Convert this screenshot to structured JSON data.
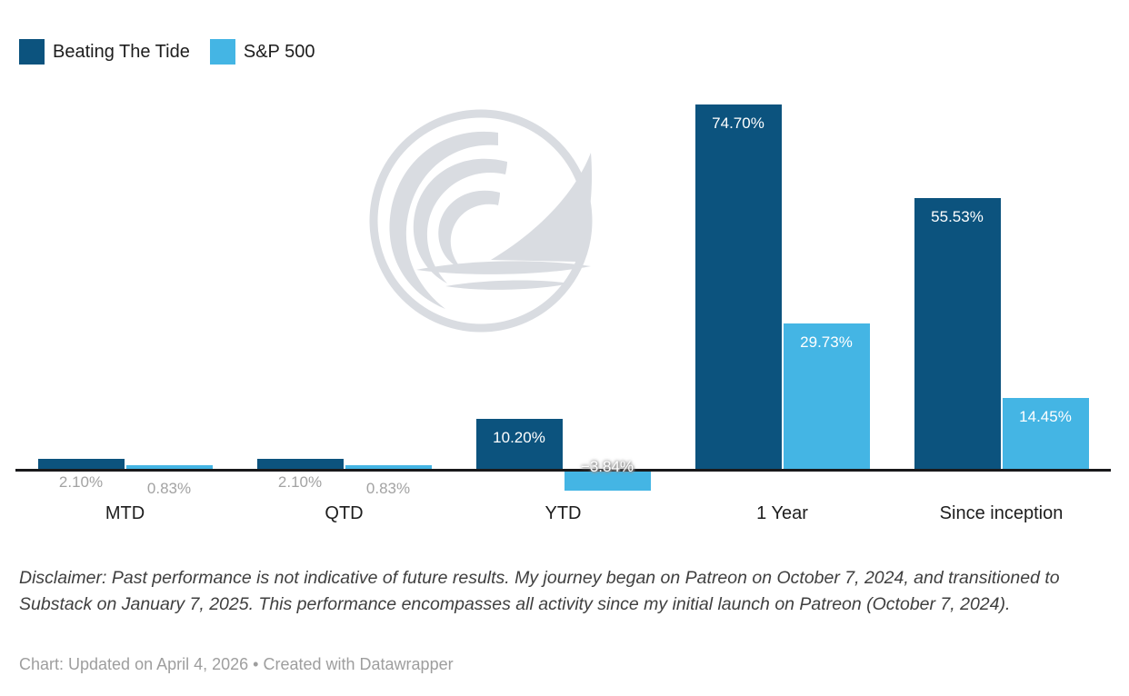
{
  "chart_data": {
    "type": "bar",
    "categories": [
      "MTD",
      "QTD",
      "YTD",
      "1 Year",
      "Since inception"
    ],
    "series": [
      {
        "name": "Beating The Tide",
        "color": "#0c537e",
        "values": [
          2.1,
          2.1,
          10.2,
          74.7,
          55.53
        ],
        "labels": [
          "2.10%",
          "2.10%",
          "10.20%",
          "74.70%",
          "55.53%"
        ]
      },
      {
        "name": "S&P 500",
        "color": "#44b5e4",
        "values": [
          0.83,
          0.83,
          -3.84,
          29.73,
          14.45
        ],
        "labels": [
          "0.83%",
          "0.83%",
          "−3.84%",
          "29.73%",
          "14.45%"
        ]
      }
    ],
    "title": "",
    "xlabel": "",
    "ylabel": "",
    "value_format": "percent",
    "ylim": [
      -3.84,
      74.7
    ],
    "baseline": 0,
    "grid": false,
    "legend_position": "top-left",
    "label_placement": "inside-top, gray outside below axis for small bars"
  },
  "watermark": {
    "name": "Beating The Tide wave-and-sail logo",
    "color": "#d9dce1"
  },
  "axis": {
    "baseline_color": "#19191b"
  },
  "notes": {
    "disclaimer": "Disclaimer: Past performance is not indicative of future results. My journey began on Patreon on October 7, 2024, and transitioned to Substack on January 7, 2025. This performance encompasses all activity since my initial launch on Patreon (October 7, 2024)."
  },
  "footer": {
    "prefix": "Chart: Updated on April 4, 2026 • ",
    "attribution": "Created with Datawrapper"
  }
}
